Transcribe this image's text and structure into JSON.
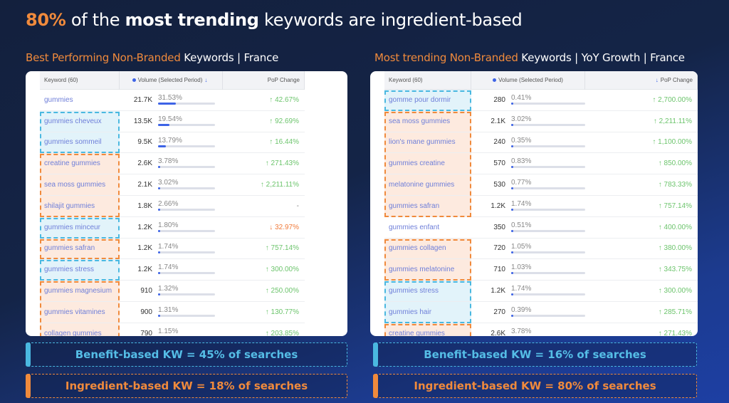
{
  "headline": {
    "highlight": "80%",
    "part1": " of the ",
    "bold": "most trending",
    "part2": " keywords are ingredient-based"
  },
  "colors": {
    "accent_orange": "#f08a3c",
    "benefit_blue": "#4ab8e0",
    "bar_blue": "#3d63e6",
    "positive_green": "#6cc46c"
  },
  "left": {
    "subtitle_accent": "Best Performing Non-Branded",
    "subtitle_rest": " Keywords | France",
    "headers": {
      "keyword": "Keyword (60)",
      "volume": "Volume (Selected Period)",
      "pop": "PoP Change"
    },
    "sort_icon": "arrow-down-icon-on-volume",
    "rows": [
      {
        "keyword": "gummies",
        "volume": "21.7K",
        "share": "31.53%",
        "share_value": 31.53,
        "pop": "42.67%",
        "direction": "up",
        "category": "none"
      },
      {
        "keyword": "gummies cheveux",
        "volume": "13.5K",
        "share": "19.54%",
        "share_value": 19.54,
        "pop": "92.69%",
        "direction": "up",
        "category": "benefit"
      },
      {
        "keyword": "gummies sommeil",
        "volume": "9.5K",
        "share": "13.79%",
        "share_value": 13.79,
        "pop": "16.44%",
        "direction": "up",
        "category": "benefit"
      },
      {
        "keyword": "creatine gummies",
        "volume": "2.6K",
        "share": "3.78%",
        "share_value": 3.78,
        "pop": "271.43%",
        "direction": "up",
        "category": "ingredient"
      },
      {
        "keyword": "sea moss gummies",
        "volume": "2.1K",
        "share": "3.02%",
        "share_value": 3.02,
        "pop": "2,211.11%",
        "direction": "up",
        "category": "ingredient"
      },
      {
        "keyword": "shilajit gummies",
        "volume": "1.8K",
        "share": "2.66%",
        "share_value": 2.66,
        "pop": "-",
        "direction": "none",
        "category": "ingredient"
      },
      {
        "keyword": "gummies minceur",
        "volume": "1.2K",
        "share": "1.80%",
        "share_value": 1.8,
        "pop": "32.97%",
        "direction": "down",
        "category": "benefit"
      },
      {
        "keyword": "gummies safran",
        "volume": "1.2K",
        "share": "1.74%",
        "share_value": 1.74,
        "pop": "757.14%",
        "direction": "up",
        "category": "ingredient"
      },
      {
        "keyword": "gummies stress",
        "volume": "1.2K",
        "share": "1.74%",
        "share_value": 1.74,
        "pop": "300.00%",
        "direction": "up",
        "category": "benefit"
      },
      {
        "keyword": "gummies magnesium",
        "volume": "910",
        "share": "1.32%",
        "share_value": 1.32,
        "pop": "250.00%",
        "direction": "up",
        "category": "ingredient"
      },
      {
        "keyword": "gummies vitamines",
        "volume": "900",
        "share": "1.31%",
        "share_value": 1.31,
        "pop": "130.77%",
        "direction": "up",
        "category": "ingredient"
      },
      {
        "keyword": "collagen gummies",
        "volume": "790",
        "share": "1.15%",
        "share_value": 1.15,
        "pop": "203.85%",
        "direction": "up",
        "category": "ingredient"
      }
    ],
    "banner_benefit": "Benefit-based KW = 45% of searches",
    "banner_ingredient": "Ingredient-based KW = 18% of searches"
  },
  "right": {
    "subtitle_accent": "Most trending Non-Branded",
    "subtitle_rest": " Keywords | YoY Growth | France",
    "headers": {
      "keyword": "Keyword (60)",
      "volume": "Volume (Selected Period)",
      "pop": "PoP Change"
    },
    "sort_icon": "arrow-down-icon-on-pop",
    "rows": [
      {
        "keyword": "gomme pour dormir",
        "volume": "280",
        "share": "0.41%",
        "share_value": 0.41,
        "pop": "2,700.00%",
        "direction": "up",
        "category": "benefit"
      },
      {
        "keyword": "sea moss gummies",
        "volume": "2.1K",
        "share": "3.02%",
        "share_value": 3.02,
        "pop": "2,211.11%",
        "direction": "up",
        "category": "ingredient"
      },
      {
        "keyword": "lion's mane gummies",
        "volume": "240",
        "share": "0.35%",
        "share_value": 0.35,
        "pop": "1,100.00%",
        "direction": "up",
        "category": "ingredient"
      },
      {
        "keyword": "gummies creatine",
        "volume": "570",
        "share": "0.83%",
        "share_value": 0.83,
        "pop": "850.00%",
        "direction": "up",
        "category": "ingredient"
      },
      {
        "keyword": "melatonine gummies",
        "volume": "530",
        "share": "0.77%",
        "share_value": 0.77,
        "pop": "783.33%",
        "direction": "up",
        "category": "ingredient"
      },
      {
        "keyword": "gummies safran",
        "volume": "1.2K",
        "share": "1.74%",
        "share_value": 1.74,
        "pop": "757.14%",
        "direction": "up",
        "category": "ingredient"
      },
      {
        "keyword": "gummies enfant",
        "volume": "350",
        "share": "0.51%",
        "share_value": 0.51,
        "pop": "400.00%",
        "direction": "up",
        "category": "none"
      },
      {
        "keyword": "gummies collagen",
        "volume": "720",
        "share": "1.05%",
        "share_value": 1.05,
        "pop": "380.00%",
        "direction": "up",
        "category": "ingredient"
      },
      {
        "keyword": "gummies melatonine",
        "volume": "710",
        "share": "1.03%",
        "share_value": 1.03,
        "pop": "343.75%",
        "direction": "up",
        "category": "ingredient"
      },
      {
        "keyword": "gummies stress",
        "volume": "1.2K",
        "share": "1.74%",
        "share_value": 1.74,
        "pop": "300.00%",
        "direction": "up",
        "category": "benefit"
      },
      {
        "keyword": "gummies hair",
        "volume": "270",
        "share": "0.39%",
        "share_value": 0.39,
        "pop": "285.71%",
        "direction": "up",
        "category": "benefit"
      },
      {
        "keyword": "creatine gummies",
        "volume": "2.6K",
        "share": "3.78%",
        "share_value": 3.78,
        "pop": "271.43%",
        "direction": "up",
        "category": "ingredient"
      }
    ],
    "banner_benefit": "Benefit-based KW = 16% of searches",
    "banner_ingredient": "Ingredient-based KW = 80% of searches"
  }
}
